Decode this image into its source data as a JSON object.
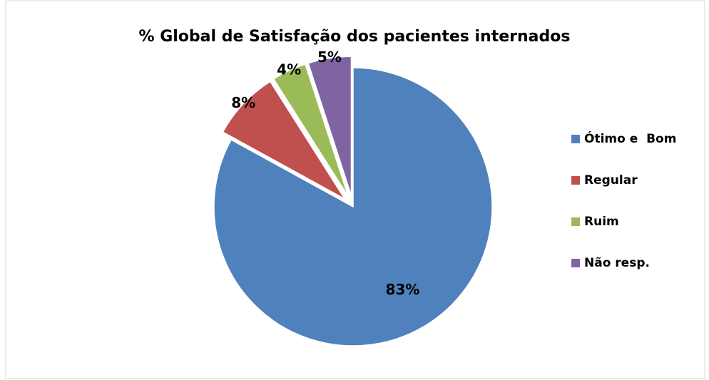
{
  "chart_data": {
    "type": "pie",
    "title": "% Global de Satisfação dos pacientes internados",
    "categories": [
      "Ótimo e  Bom",
      "Regular",
      "Ruim",
      "Não resp."
    ],
    "values": [
      83,
      8,
      4,
      5
    ],
    "value_labels": [
      "83%",
      "8%",
      "4%",
      "5%"
    ],
    "colors": [
      "#4f81bd",
      "#c0504d",
      "#9bbb59",
      "#8064a2"
    ],
    "legend": "right"
  }
}
